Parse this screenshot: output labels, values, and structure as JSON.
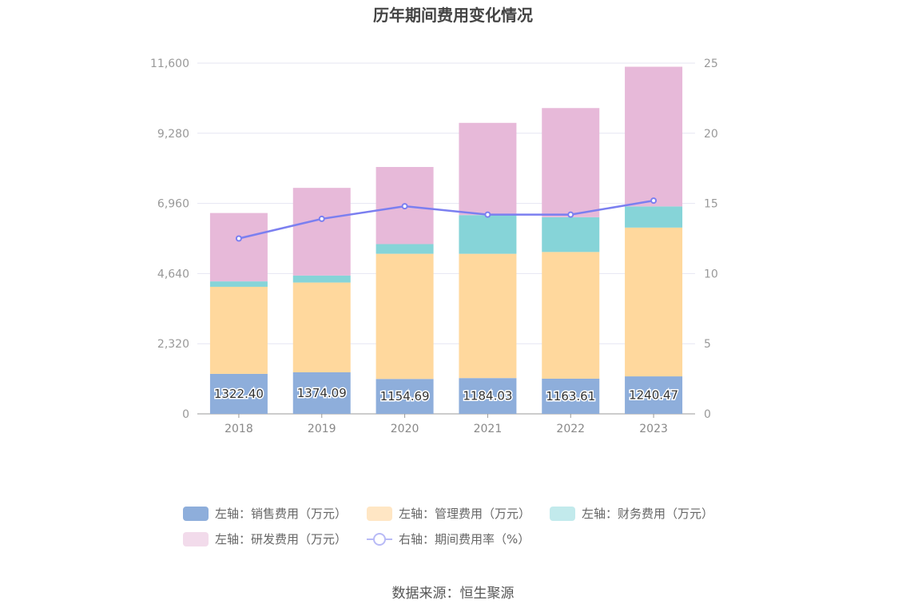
{
  "chart_data": {
    "type": "bar",
    "title": "历年期间费用变化情况",
    "categories": [
      "2018",
      "2019",
      "2020",
      "2021",
      "2022",
      "2023"
    ],
    "left_axis": {
      "ylim": [
        0,
        11600
      ],
      "ticks": [
        "0",
        "2,320",
        "4,640",
        "6,960",
        "9,280",
        "11,600"
      ]
    },
    "right_axis": {
      "ylim": [
        0,
        25
      ],
      "ticks": [
        "0",
        "5",
        "10",
        "15",
        "20",
        "25"
      ]
    },
    "stacked": true,
    "grid": true,
    "legend_position": "bottom",
    "series": [
      {
        "name": "左轴：销售费用（万元）",
        "axis": "left",
        "type": "bar",
        "color": "#8eaedb",
        "values": [
          1322.4,
          1374.09,
          1154.69,
          1184.03,
          1163.61,
          1240.47
        ],
        "labels": [
          "1322.40",
          "1374.09",
          "1154.69",
          "1184.03",
          "1163.61",
          "1240.47"
        ]
      },
      {
        "name": "左轴：管理费用（万元）",
        "axis": "left",
        "type": "bar",
        "color": "#ffd89d",
        "values": [
          2880,
          2970,
          4140,
          4110,
          4190,
          4920
        ]
      },
      {
        "name": "左轴：财务费用（万元）",
        "axis": "left",
        "type": "bar",
        "color": "#86d4d8",
        "values": [
          180,
          230,
          320,
          1280,
          1150,
          700
        ]
      },
      {
        "name": "左轴：研发费用（万元）",
        "axis": "left",
        "type": "bar",
        "color": "#e7b9d9",
        "values": [
          2260,
          2900,
          2550,
          3050,
          3610,
          4620
        ]
      },
      {
        "name": "右轴：期间费用率（%）",
        "axis": "right",
        "type": "line",
        "color": "#7b7ff0",
        "values": [
          12.5,
          13.9,
          14.8,
          14.2,
          14.2,
          15.2
        ]
      }
    ]
  },
  "legend": {
    "items": [
      {
        "label": "左轴：销售费用（万元）",
        "color": "#8eaedb",
        "kind": "rect"
      },
      {
        "label": "左轴：管理费用（万元）",
        "color": "#ffe6c4",
        "kind": "rect"
      },
      {
        "label": "左轴：财务费用（万元）",
        "color": "#c2eaec",
        "kind": "rect"
      },
      {
        "label": "左轴：研发费用（万元）",
        "color": "#f2dbeb",
        "kind": "rect"
      },
      {
        "label": "右轴：期间费用率（%）",
        "color": "#b8baf6",
        "kind": "line"
      }
    ]
  },
  "footer": {
    "source": "数据来源：恒生聚源"
  }
}
